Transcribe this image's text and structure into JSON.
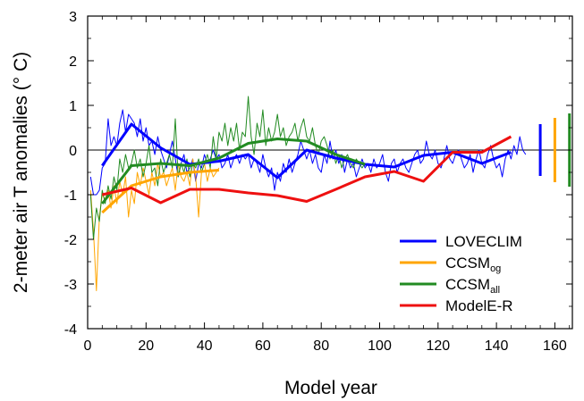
{
  "chart_data": {
    "type": "line",
    "xlabel": "Model year",
    "ylabel": "2-meter air T anomalies (° C)",
    "xlim": [
      0,
      166
    ],
    "ylim": [
      -4,
      3
    ],
    "xticks": [
      0,
      20,
      40,
      60,
      80,
      100,
      120,
      140,
      160
    ],
    "yticks": [
      -4,
      -3,
      -2,
      -1,
      0,
      1,
      2,
      3
    ],
    "zero_line": true,
    "legend_position": "bottom-right",
    "series": [
      {
        "name": "LOVECLIM",
        "name_base": "LOVECLIM",
        "name_sub": "",
        "color": "#0000ff",
        "annual": {
          "x": [
            1,
            2,
            3,
            4,
            5,
            6,
            7,
            8,
            9,
            10,
            11,
            12,
            13,
            14,
            15,
            16,
            17,
            18,
            19,
            20,
            21,
            22,
            23,
            24,
            25,
            26,
            27,
            28,
            29,
            30,
            31,
            32,
            33,
            34,
            35,
            36,
            37,
            38,
            39,
            40,
            41,
            42,
            43,
            44,
            45,
            46,
            47,
            48,
            49,
            50,
            51,
            52,
            53,
            54,
            55,
            56,
            57,
            58,
            59,
            60,
            61,
            62,
            63,
            64,
            65,
            66,
            67,
            68,
            69,
            70,
            71,
            72,
            73,
            74,
            75,
            76,
            77,
            78,
            79,
            80,
            81,
            82,
            83,
            84,
            85,
            86,
            87,
            88,
            89,
            90,
            91,
            92,
            93,
            94,
            95,
            96,
            97,
            98,
            99,
            100,
            101,
            102,
            103,
            104,
            105,
            106,
            107,
            108,
            109,
            110,
            111,
            112,
            113,
            114,
            115,
            116,
            117,
            118,
            119,
            120,
            121,
            122,
            123,
            124,
            125,
            126,
            127,
            128,
            129,
            130,
            131,
            132,
            133,
            134,
            135,
            136,
            137,
            138,
            139,
            140,
            141,
            142,
            143,
            144,
            145,
            146,
            147,
            148,
            149,
            150
          ],
          "y": [
            -0.6,
            -1.0,
            -1.0,
            -0.9,
            -0.4,
            -0.3,
            0.7,
            0.1,
            0.3,
            0.1,
            0.6,
            0.9,
            0.4,
            0.8,
            0.7,
            0.6,
            0.3,
            0.7,
            0.2,
            0.5,
            0.1,
            0.2,
            -0.1,
            0.3,
            0.0,
            -0.2,
            -0.4,
            -0.1,
            0.2,
            -0.2,
            -0.6,
            -0.3,
            -0.1,
            -0.5,
            -0.4,
            -0.2,
            -0.7,
            -0.3,
            -0.4,
            -0.1,
            -0.3,
            -0.2,
            0.0,
            -0.2,
            -0.1,
            -0.4,
            -0.3,
            -0.1,
            -0.4,
            -0.2,
            -0.1,
            -0.3,
            -0.1,
            -0.2,
            -0.1,
            -0.4,
            -0.2,
            -0.3,
            -0.5,
            -0.1,
            -0.4,
            -0.6,
            -0.4,
            -0.9,
            -0.5,
            -0.7,
            -0.3,
            -0.5,
            -0.2,
            -0.5,
            -0.3,
            -0.1,
            0.2,
            0.0,
            -0.2,
            0.0,
            -0.3,
            -0.1,
            -0.4,
            -0.5,
            -0.1,
            -0.3,
            0.2,
            -0.2,
            0.0,
            -0.3,
            -0.1,
            -0.5,
            -0.2,
            -0.4,
            -0.3,
            -0.6,
            -0.4,
            -0.2,
            -0.4,
            -0.3,
            -0.5,
            -0.2,
            -0.4,
            -0.3,
            -0.1,
            -0.5,
            -0.7,
            -0.3,
            -0.2,
            -0.5,
            -0.3,
            -0.2,
            -0.4,
            -0.5,
            -0.3,
            -0.1,
            0.0,
            -0.3,
            -0.2,
            0.2,
            -0.1,
            -0.2,
            0.0,
            -0.3,
            -0.4,
            -0.2,
            0.1,
            -0.2,
            -0.3,
            -0.1,
            0.0,
            -0.2,
            -0.4,
            -0.3,
            -0.1,
            -0.5,
            -0.2,
            0.0,
            -0.3,
            -0.4,
            -0.1,
            0.1,
            -0.2,
            -0.4,
            -0.3,
            -0.6,
            -0.2,
            0.0,
            -0.2,
            0.1,
            -0.1,
            0.3,
            0.0,
            -0.1
          ]
        },
        "decadal": {
          "x": [
            5,
            15,
            25,
            35,
            45,
            55,
            65,
            75,
            85,
            95,
            105,
            115,
            125,
            135,
            145
          ],
          "y": [
            -0.35,
            0.58,
            0.05,
            -0.32,
            -0.25,
            -0.1,
            -0.62,
            0.0,
            -0.18,
            -0.32,
            -0.38,
            -0.12,
            -0.05,
            -0.3,
            -0.05
          ]
        },
        "spread_bar": {
          "x": 155,
          "ymin": -0.58,
          "ymax": 0.58
        }
      },
      {
        "name": "CCSMog",
        "name_base": "CCSM",
        "name_sub": "og",
        "color": "#ffa500",
        "annual": {
          "x": [
            1,
            2,
            3,
            4,
            5,
            6,
            7,
            8,
            9,
            10,
            11,
            12,
            13,
            14,
            15,
            16,
            17,
            18,
            19,
            20,
            21,
            22,
            23,
            24,
            25,
            26,
            27,
            28,
            29,
            30,
            31,
            32,
            33,
            34,
            35,
            36,
            37,
            38,
            39,
            40,
            41,
            42,
            43,
            44,
            45
          ],
          "y": [
            -0.9,
            -1.8,
            -3.15,
            -1.5,
            -1.0,
            -1.1,
            -0.9,
            -1.3,
            -0.8,
            -1.2,
            -0.7,
            -1.0,
            -0.6,
            -1.5,
            -0.9,
            -1.2,
            -0.5,
            -0.8,
            -0.4,
            -0.7,
            -1.0,
            -0.5,
            -0.8,
            -0.3,
            -0.6,
            -0.5,
            -0.8,
            -0.6,
            -0.4,
            -0.9,
            -0.3,
            -0.6,
            -0.7,
            -0.5,
            -0.8,
            -0.2,
            -0.6,
            -1.5,
            -0.5,
            -0.3,
            -0.7,
            -0.4,
            -0.6,
            -0.5,
            -0.4
          ]
        },
        "decadal": {
          "x": [
            5,
            15,
            25,
            35,
            45
          ],
          "y": [
            -1.4,
            -0.8,
            -0.6,
            -0.5,
            -0.45
          ]
        },
        "spread_bar": {
          "x": 160,
          "ymin": -0.72,
          "ymax": 0.72
        }
      },
      {
        "name": "CCSMall",
        "name_base": "CCSM",
        "name_sub": "all",
        "color": "#228b22",
        "annual": {
          "x": [
            1,
            2,
            3,
            4,
            5,
            6,
            7,
            8,
            9,
            10,
            11,
            12,
            13,
            14,
            15,
            16,
            17,
            18,
            19,
            20,
            21,
            22,
            23,
            24,
            25,
            26,
            27,
            28,
            29,
            30,
            31,
            32,
            33,
            34,
            35,
            36,
            37,
            38,
            39,
            40,
            41,
            42,
            43,
            44,
            45,
            46,
            47,
            48,
            49,
            50,
            51,
            52,
            53,
            54,
            55,
            56,
            57,
            58,
            59,
            60,
            61,
            62,
            63,
            64,
            65,
            66,
            67,
            68,
            69,
            70,
            71,
            72,
            73,
            74,
            75,
            76,
            77,
            78,
            79,
            80,
            81,
            82,
            83,
            84,
            85,
            86,
            87,
            88,
            89,
            90,
            91,
            92,
            93,
            94,
            95
          ],
          "y": [
            -1.0,
            -2.0,
            -1.3,
            -1.6,
            -0.9,
            -1.2,
            -0.8,
            -1.1,
            -0.6,
            -0.9,
            -0.2,
            -0.5,
            -0.1,
            -0.4,
            -0.3,
            0.0,
            -0.4,
            -0.2,
            -0.6,
            -0.3,
            0.1,
            -0.5,
            -0.4,
            -0.8,
            -0.2,
            -0.5,
            -0.3,
            -0.1,
            -0.4,
            0.7,
            -0.6,
            -0.3,
            -0.5,
            -0.2,
            -0.6,
            -0.3,
            -0.4,
            -0.2,
            -0.5,
            -0.3,
            -0.1,
            -0.4,
            0.3,
            -0.2,
            0.4,
            0.2,
            0.6,
            0.1,
            0.5,
            0.2,
            0.6,
            0.0,
            0.4,
            0.3,
            1.2,
            0.3,
            -0.1,
            0.6,
            0.3,
            0.9,
            0.1,
            0.5,
            0.2,
            0.4,
            0.8,
            0.3,
            0.5,
            0.1,
            0.3,
            0.4,
            0.6,
            0.2,
            0.5,
            0.7,
            0.3,
            0.2,
            0.5,
            0.1,
            -0.1,
            0.2,
            0.3,
            0.1,
            -0.2,
            0.0,
            -0.3,
            -0.1,
            -0.4,
            -0.2,
            -0.1,
            -0.3,
            -0.4,
            -0.2,
            -0.3,
            -0.4,
            -0.3
          ]
        },
        "decadal": {
          "x": [
            5,
            15,
            25,
            35,
            45,
            55,
            65,
            75,
            85,
            95
          ],
          "y": [
            -1.2,
            -0.35,
            -0.3,
            -0.35,
            -0.18,
            0.15,
            0.25,
            0.2,
            -0.1,
            -0.32
          ]
        },
        "spread_bar": {
          "x": 165,
          "ymin": -0.82,
          "ymax": 0.82
        }
      },
      {
        "name": "ModelE-R",
        "name_base": "ModelE-R",
        "name_sub": "",
        "color": "#ee1010",
        "decadal": {
          "x": [
            5,
            15,
            25,
            35,
            45,
            55,
            65,
            75,
            85,
            95,
            105,
            115,
            125,
            135,
            145
          ],
          "y": [
            -1.0,
            -0.85,
            -1.18,
            -0.88,
            -0.88,
            -0.96,
            -1.02,
            -1.15,
            -0.88,
            -0.6,
            -0.48,
            -0.7,
            -0.05,
            -0.05,
            0.3
          ]
        }
      }
    ]
  }
}
